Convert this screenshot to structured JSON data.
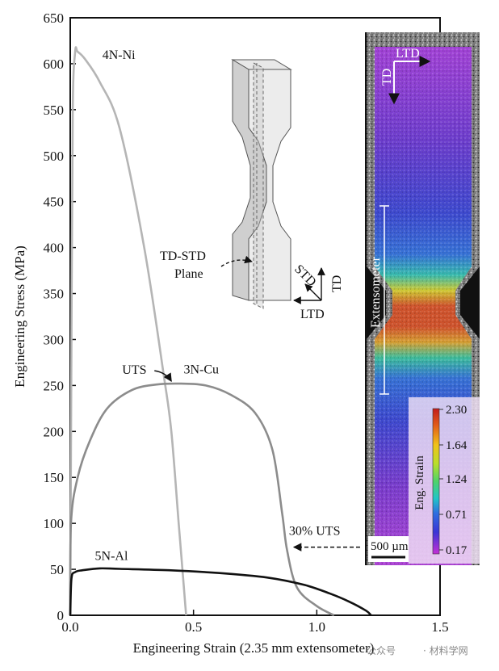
{
  "chart_data": {
    "type": "line",
    "xlabel": "Engineering Strain (2.35 mm extensometer)",
    "ylabel": "Engineering Stress (MPa)",
    "xlim": [
      0,
      1.5
    ],
    "ylim": [
      0,
      650
    ],
    "x_ticks": [
      "0.0",
      "0.5",
      "1.0",
      "1.5"
    ],
    "x_tick_values": [
      0,
      0.5,
      1.0,
      1.5
    ],
    "y_ticks": [
      "0",
      "50",
      "100",
      "150",
      "200",
      "250",
      "300",
      "350",
      "400",
      "450",
      "500",
      "550",
      "600",
      "650"
    ],
    "y_tick_values": [
      0,
      50,
      100,
      150,
      200,
      250,
      300,
      350,
      400,
      450,
      500,
      550,
      600,
      650
    ],
    "series": [
      {
        "name": "4N-Ni",
        "color": "#b5b5b5",
        "points": [
          [
            0,
            0
          ],
          [
            0.005,
            300
          ],
          [
            0.01,
            550
          ],
          [
            0.02,
            613
          ],
          [
            0.03,
            613
          ],
          [
            0.06,
            605
          ],
          [
            0.12,
            580
          ],
          [
            0.2,
            530
          ],
          [
            0.3,
            400
          ],
          [
            0.38,
            260
          ],
          [
            0.41,
            200
          ],
          [
            0.44,
            100
          ],
          [
            0.47,
            0
          ]
        ]
      },
      {
        "name": "3N-Cu",
        "color": "#8c8c8c",
        "points": [
          [
            0,
            0
          ],
          [
            0.003,
            100
          ],
          [
            0.03,
            150
          ],
          [
            0.08,
            190
          ],
          [
            0.15,
            225
          ],
          [
            0.25,
            245
          ],
          [
            0.35,
            251
          ],
          [
            0.45,
            252
          ],
          [
            0.55,
            250
          ],
          [
            0.65,
            240
          ],
          [
            0.75,
            220
          ],
          [
            0.82,
            180
          ],
          [
            0.86,
            110
          ],
          [
            0.88,
            70
          ],
          [
            0.92,
            30
          ],
          [
            1.0,
            10
          ],
          [
            1.07,
            0
          ]
        ]
      },
      {
        "name": "5N-Al",
        "color": "#111111",
        "points": [
          [
            0,
            0
          ],
          [
            0.005,
            40
          ],
          [
            0.02,
            47
          ],
          [
            0.05,
            49
          ],
          [
            0.12,
            51
          ],
          [
            0.2,
            50.5
          ],
          [
            0.4,
            49
          ],
          [
            0.6,
            46
          ],
          [
            0.8,
            41
          ],
          [
            0.95,
            33
          ],
          [
            1.05,
            24
          ],
          [
            1.13,
            15
          ],
          [
            1.2,
            5
          ],
          [
            1.22,
            0
          ]
        ]
      }
    ],
    "annotations": {
      "uts": "UTS",
      "uts_at": [
        0.42,
        252
      ],
      "uts30": "30% UTS",
      "uts30_at": [
        0.92,
        75
      ],
      "label_ni": "4N-Ni",
      "label_cu": "3N-Cu",
      "label_al": "5N-Al",
      "label_ni_at": [
        0.13,
        605
      ],
      "label_cu_at": [
        0.46,
        263
      ],
      "label_al_at": [
        0.1,
        60
      ]
    },
    "specimen_inset": {
      "plane_label_1": "TD-STD",
      "plane_label_2": "Plane",
      "axis_std": "STD",
      "axis_td": "TD",
      "axis_ltd": "LTD"
    },
    "dic_image": {
      "label_ltd": "LTD",
      "label_td": "TD",
      "extensometer_label": "Extensometer",
      "scale_bar_label": "500 µm",
      "colorbar_title": "Eng. Strain",
      "colorbar_ticks": [
        "2.30",
        "1.64",
        "1.24",
        "0.71",
        "0.17"
      ],
      "colorbar_colors": [
        "#c21b1b",
        "#e35f1a",
        "#f0c21a",
        "#7ed23a",
        "#21c4a8",
        "#3a8de0",
        "#2a3fd6",
        "#6a2fd0",
        "#c42fd6"
      ]
    },
    "grid": false,
    "legend": "none"
  },
  "watermark": {
    "left_text": "公众号",
    "right_text": "· 材料学网"
  }
}
